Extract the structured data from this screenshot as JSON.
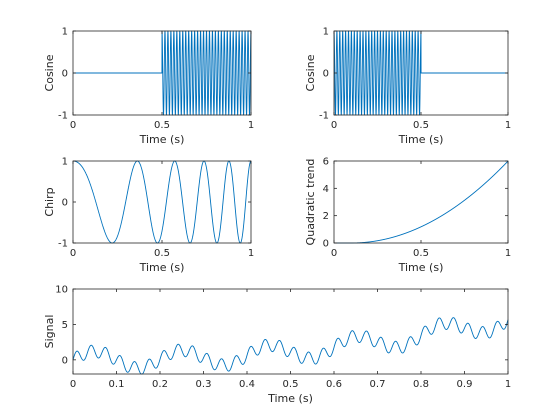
{
  "colors": {
    "trace": "#0072bd",
    "axes": "#262626",
    "background": "#ffffff"
  },
  "chart_data": [
    {
      "type": "line",
      "xlabel": "Time (s)",
      "ylabel": "Cosine",
      "xlim": [
        0,
        1
      ],
      "ylim": [
        -1,
        1
      ],
      "xticks": [
        0,
        0.5,
        1
      ],
      "yticks": [
        -1,
        0,
        1
      ],
      "grid": false,
      "series": [
        {
          "function": "cos(2*pi*f*t) for 0.5 <= t <= 1, 0 otherwise",
          "frequency_hz": 60,
          "x_range": [
            0,
            1
          ]
        }
      ]
    },
    {
      "type": "line",
      "xlabel": "Time (s)",
      "ylabel": "Cosine",
      "xlim": [
        0,
        1
      ],
      "ylim": [
        -1,
        1
      ],
      "xticks": [
        0,
        0.5,
        1
      ],
      "yticks": [
        -1,
        0,
        1
      ],
      "grid": false,
      "series": [
        {
          "function": "cos(2*pi*f*t) for 0 <= t <= 0.5, 0 otherwise",
          "frequency_hz": 60,
          "x_range": [
            0,
            1
          ]
        }
      ]
    },
    {
      "type": "line",
      "xlabel": "Time (s)",
      "ylabel": "Chirp",
      "xlim": [
        0,
        1
      ],
      "ylim": [
        -1,
        1
      ],
      "xticks": [
        0,
        0.5,
        1
      ],
      "yticks": [
        -1,
        0,
        1
      ],
      "grid": false,
      "series": [
        {
          "function": "cos(2*pi*(f0*t + (k/2)*t^2))",
          "start_frequency_hz": 1.5,
          "end_frequency_hz": 8.5,
          "x_range": [
            0,
            1
          ]
        }
      ]
    },
    {
      "type": "line",
      "xlabel": "Time (s)",
      "ylabel": "Quadratic trend",
      "xlim": [
        0,
        1
      ],
      "ylim": [
        0,
        6
      ],
      "xticks": [
        0,
        0.5,
        1
      ],
      "yticks": [
        0,
        2,
        4,
        6
      ],
      "grid": false,
      "series": [
        {
          "function": "a*(t - t0)^2 for t > t0, 0 otherwise",
          "t0": 0.1,
          "a": 7.4,
          "x_range": [
            0,
            1
          ]
        }
      ]
    },
    {
      "type": "line",
      "xlabel": "Time (s)",
      "ylabel": "Signal",
      "xlim": [
        0,
        1
      ],
      "ylim": [
        -2,
        10
      ],
      "xticks": [
        0,
        0.1,
        0.2,
        0.3,
        0.4,
        0.5,
        0.6,
        0.7,
        0.8,
        0.9,
        1
      ],
      "yticks": [
        0,
        5,
        10
      ],
      "grid": false,
      "series": [
        {
          "function": "sum of a low-frequency oscillation, a 30 Hz ripple and a quadratic trend",
          "components": [
            {
              "kind": "sine",
              "amplitude": 1.2,
              "frequency_hz": 5
            },
            {
              "kind": "sine",
              "amplitude": 0.9,
              "frequency_hz": 30
            },
            {
              "kind": "trend",
              "function": "a*(t - t0)^2 for t > t0, 0 otherwise",
              "t0": 0.1,
              "a": 7.0
            }
          ],
          "x_range": [
            0,
            1
          ]
        }
      ]
    }
  ]
}
